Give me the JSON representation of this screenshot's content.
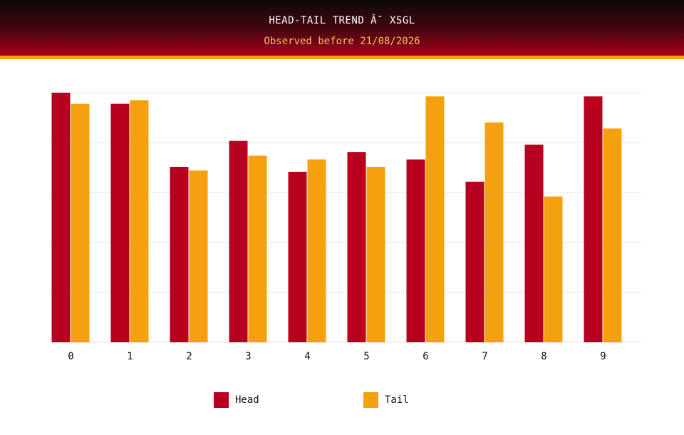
{
  "header": {
    "title": "HEAD-TAIL TREND Â˘ XSGL",
    "subtitle": "Observed before 21/08/2026"
  },
  "colors": {
    "head": "#b8001f",
    "tail": "#f5a00f",
    "grid": "#e6e6e6",
    "axis_text": "#111111"
  },
  "chart_data": {
    "type": "bar",
    "title": "HEAD-TAIL TREND Â˘ XSGL",
    "subtitle": "Observed before 21/08/2026",
    "categories": [
      "0",
      "1",
      "2",
      "3",
      "4",
      "5",
      "6",
      "7",
      "8",
      "9"
    ],
    "series": [
      {
        "name": "Head",
        "values": [
          101,
          96.5,
          71,
          81.5,
          69,
          77,
          74,
          65,
          80,
          99.5
        ]
      },
      {
        "name": "Tail",
        "values": [
          96.5,
          98,
          69.5,
          75.5,
          74,
          71,
          99.5,
          89,
          59,
          86.5
        ]
      }
    ],
    "ylim": [
      0,
      101
    ],
    "grid": true,
    "y_tick_labels_shown": false,
    "legend": "bottom"
  }
}
